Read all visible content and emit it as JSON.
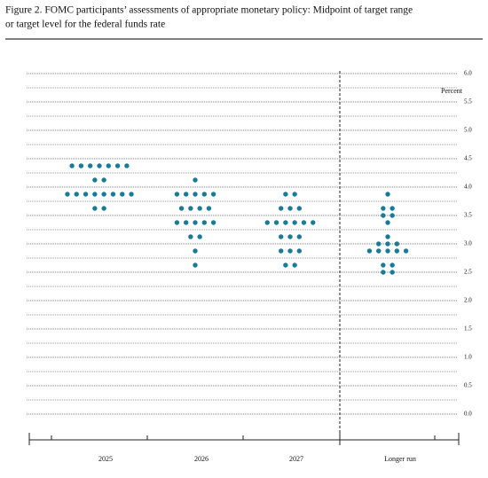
{
  "chart_data": {
    "type": "dot",
    "title": "Figure 2.  FOMC participants’ assessments of appropriate monetary policy:  Midpoint of target range",
    "subtitle": "or target level for the federal funds rate",
    "y_label": "Percent",
    "categories": [
      "2025",
      "2026",
      "2027",
      "Longer run"
    ],
    "values": [
      [
        4.375,
        4.375,
        4.375,
        4.375,
        4.375,
        4.375,
        4.375,
        4.125,
        4.125,
        3.875,
        3.875,
        3.875,
        3.875,
        3.875,
        3.875,
        3.875,
        3.875,
        3.625,
        3.625
      ],
      [
        4.125,
        3.875,
        3.875,
        3.875,
        3.875,
        3.875,
        3.625,
        3.625,
        3.625,
        3.625,
        3.375,
        3.375,
        3.375,
        3.375,
        3.375,
        3.125,
        3.125,
        2.875,
        2.625
      ],
      [
        3.875,
        3.875,
        3.625,
        3.625,
        3.625,
        3.375,
        3.375,
        3.375,
        3.375,
        3.375,
        3.375,
        3.125,
        3.125,
        3.125,
        2.875,
        2.875,
        2.875,
        2.625,
        2.625
      ],
      [
        3.875,
        3.625,
        3.625,
        3.5,
        3.5,
        3.375,
        3.125,
        3.0,
        3.0,
        3.0,
        2.875,
        2.875,
        2.875,
        2.875,
        2.875,
        2.625,
        2.625,
        2.5,
        2.5
      ]
    ],
    "color": "#1a7a98",
    "ylim": [
      0,
      6
    ],
    "yticks": [
      {
        "value": 0,
        "label": "0.0"
      },
      {
        "value": 0.5,
        "label": "0.5"
      },
      {
        "value": 1,
        "label": "1.0"
      },
      {
        "value": 1.5,
        "label": "1.5"
      },
      {
        "value": 2,
        "label": "2.0"
      },
      {
        "value": 2.5,
        "label": "2.5"
      },
      {
        "value": 3,
        "label": "3.0"
      },
      {
        "value": 3.5,
        "label": "3.5"
      },
      {
        "value": 4,
        "label": "4.0"
      },
      {
        "value": 4.5,
        "label": "4.5"
      },
      {
        "value": 5,
        "label": "5.0"
      },
      {
        "value": 5.5,
        "label": "5.5"
      },
      {
        "value": 6,
        "label": "6.0"
      }
    ],
    "minor_yticks": [
      0.25,
      0.75,
      1.25,
      1.75,
      2.25,
      2.75,
      3.25,
      3.75,
      4.25,
      4.75,
      5.25,
      5.75
    ],
    "grid": true
  }
}
